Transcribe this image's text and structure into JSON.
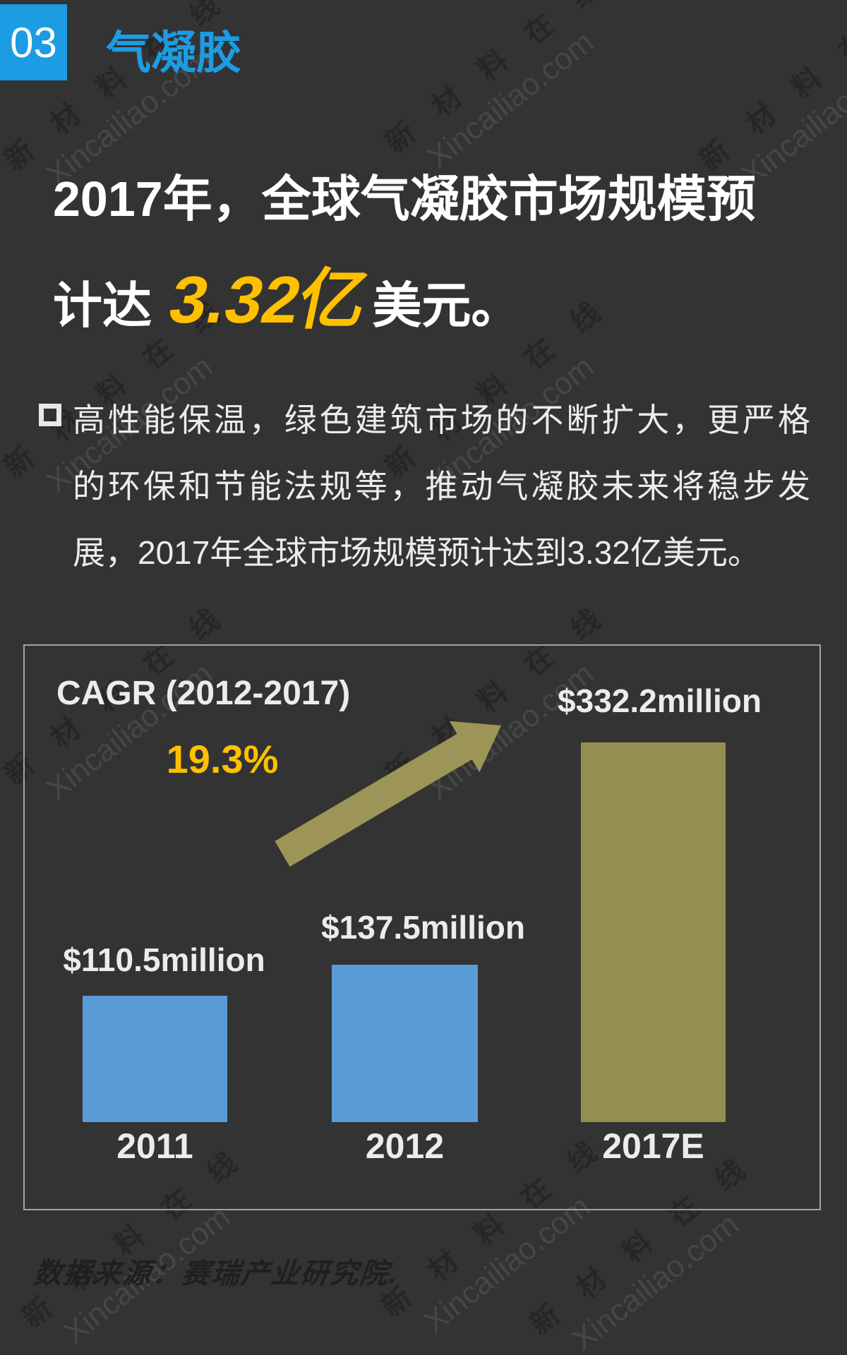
{
  "page": {
    "background": "#333333",
    "text_color": "#ECECEC"
  },
  "watermark": {
    "cn": "新 材 料 在 线",
    "en": "Xincailiao.com"
  },
  "header": {
    "badge": "03",
    "title": "气凝胶",
    "accent_blue": "#1B9CE3"
  },
  "headline": {
    "line1": "2017年，全球气凝胶市场规模预",
    "line2_prefix": "计达 ",
    "line2_highlight": "3.32亿",
    "line2_suffix": "美元。",
    "highlight_yellow": "#FFC000"
  },
  "bullet": {
    "lines": [
      "高性能保温，绿色建筑市场的不断扩大，更严格",
      "的环保和节能法规等，推动气凝胶未来将稳步发",
      "展，2017年全球市场规模预计达到3.32亿美元。"
    ]
  },
  "chart_data": {
    "type": "bar",
    "categories": [
      "2011",
      "2012",
      "2017E"
    ],
    "values": [
      110.5,
      137.5,
      332.2
    ],
    "value_labels": [
      "$110.5million",
      "$137.5million",
      "$332.2million"
    ],
    "bar_colors": [
      "#5B9BD5",
      "#5B9BD5",
      "#958E51"
    ],
    "unit": "USD million",
    "title": "",
    "xlabel": "",
    "ylabel": "",
    "grid": false,
    "annotations": {
      "cagr_label": "CAGR (2012-2017)",
      "cagr_value": "19.3%",
      "cagr_value_color": "#FFC000",
      "arrow_color": "#9C9557",
      "arrow_meaning": "growth from 2012 to 2017E"
    }
  },
  "footer": {
    "source": "数据来源：赛瑞产业研究院."
  }
}
